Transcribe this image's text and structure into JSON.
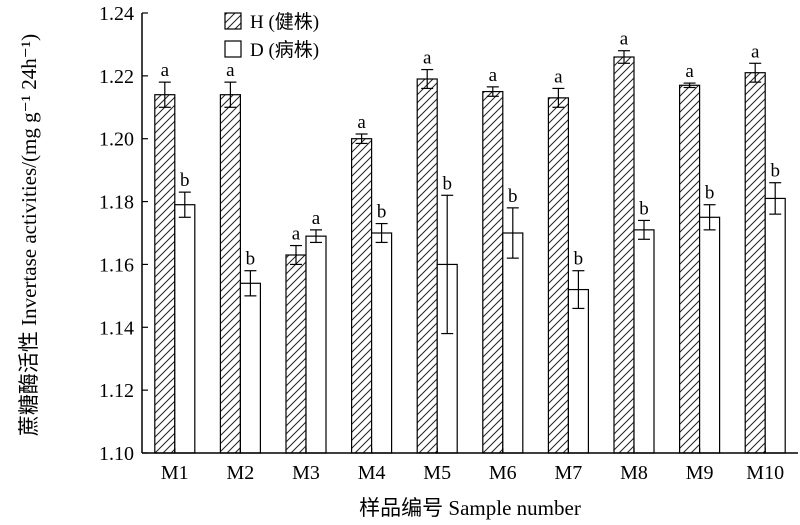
{
  "chart_data": {
    "type": "bar",
    "categories": [
      "M1",
      "M2",
      "M3",
      "M4",
      "M5",
      "M6",
      "M7",
      "M8",
      "M9",
      "M10"
    ],
    "series": [
      {
        "name": "H (健株)",
        "pattern": "hatch",
        "values": [
          1.214,
          1.214,
          1.163,
          1.2,
          1.219,
          1.215,
          1.213,
          1.226,
          1.217,
          1.221
        ],
        "errors": [
          0.004,
          0.004,
          0.003,
          0.0015,
          0.003,
          0.0015,
          0.003,
          0.002,
          0.0007,
          0.003
        ],
        "labels": [
          "a",
          "a",
          "a",
          "a",
          "a",
          "a",
          "a",
          "a",
          "a",
          "a"
        ]
      },
      {
        "name": "D (病株)",
        "pattern": "open",
        "values": [
          1.179,
          1.154,
          1.169,
          1.17,
          1.16,
          1.17,
          1.152,
          1.171,
          1.175,
          1.181
        ],
        "errors": [
          0.004,
          0.004,
          0.002,
          0.003,
          0.022,
          0.008,
          0.006,
          0.003,
          0.004,
          0.005
        ],
        "labels": [
          "b",
          "b",
          "a",
          "b",
          "b",
          "b",
          "b",
          "b",
          "b",
          "b"
        ]
      }
    ],
    "xlabel": "样品编号 Sample number",
    "ylabel": "蔗糖酶活性 Invertase activities/(mg g⁻¹ 24h⁻¹)",
    "ylim": [
      1.1,
      1.24
    ],
    "yticks": [
      "1.10",
      "1.12",
      "1.14",
      "1.16",
      "1.18",
      "1.20",
      "1.22",
      "1.24"
    ],
    "grid": false,
    "legend": "top-left"
  }
}
